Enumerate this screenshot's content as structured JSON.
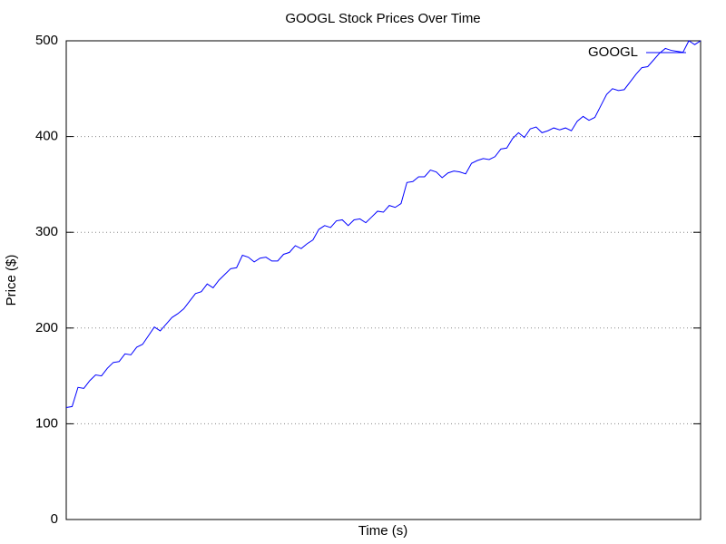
{
  "chart_data": {
    "type": "line",
    "title": "GOOGL Stock Prices Over Time",
    "xlabel": "Time (s)",
    "ylabel": "Price ($)",
    "ylim": [
      0,
      500
    ],
    "yticks": [
      0,
      100,
      200,
      300,
      400,
      500
    ],
    "grid": true,
    "legend": "top-right",
    "series": [
      {
        "name": "GOOGL",
        "color": "#0000ff",
        "values": [
          117,
          118,
          138,
          137,
          145,
          151,
          150,
          158,
          164,
          165,
          173,
          172,
          180,
          183,
          192,
          201,
          197,
          204,
          211,
          215,
          220,
          228,
          236,
          238,
          246,
          242,
          250,
          256,
          262,
          263,
          276,
          274,
          269,
          273,
          274,
          270,
          270,
          277,
          279,
          286,
          283,
          288,
          292,
          303,
          307,
          305,
          312,
          313,
          307,
          313,
          314,
          310,
          316,
          322,
          321,
          328,
          326,
          330,
          352,
          353,
          358,
          358,
          365,
          363,
          357,
          362,
          364,
          363,
          361,
          372,
          375,
          377,
          376,
          379,
          387,
          388,
          398,
          404,
          399,
          408,
          410,
          404,
          406,
          409,
          407,
          409,
          406,
          416,
          421,
          417,
          420,
          432,
          444,
          450,
          448,
          449,
          457,
          465,
          472,
          473,
          480,
          487,
          492,
          490,
          489,
          488,
          500,
          496,
          500
        ]
      }
    ]
  }
}
